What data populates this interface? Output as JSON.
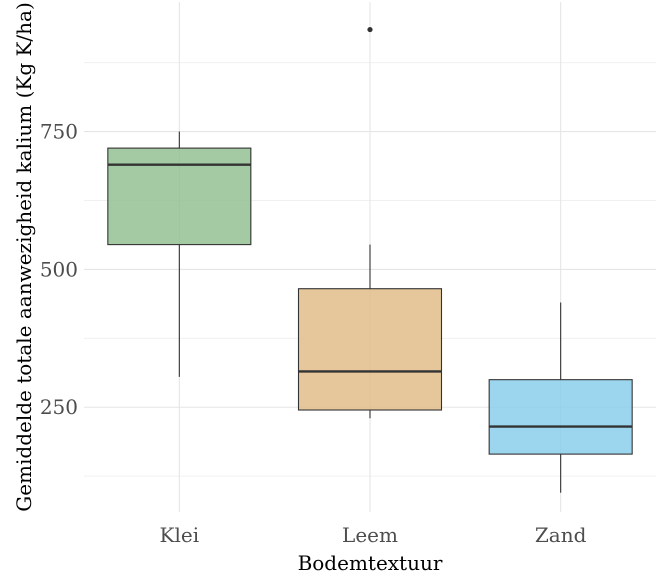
{
  "chart_data": {
    "type": "boxplot",
    "xlabel": "Bodemtextuur",
    "ylabel": "Gemiddelde totale aanwezigheid kalium (Kg K/ha)",
    "ylim": [
      60,
      985
    ],
    "y_ticks": [
      250,
      500,
      750
    ],
    "grid": true,
    "legend": "none",
    "categories": [
      "Klei",
      "Leem",
      "Zand"
    ],
    "boxes": [
      {
        "category": "Klei",
        "whisker_low": 305,
        "q1": 545,
        "median": 690,
        "q3": 720,
        "whisker_high": 750,
        "outliers": [],
        "color": "#93c193"
      },
      {
        "category": "Leem",
        "whisker_low": 230,
        "q1": 245,
        "median": 315,
        "q3": 465,
        "whisker_high": 545,
        "outliers": [
          935
        ],
        "color": "#e1bd8a"
      },
      {
        "category": "Zand",
        "whisker_low": 95,
        "q1": 165,
        "median": 215,
        "q3": 300,
        "whisker_high": 440,
        "outliers": [],
        "color": "#8bcfeb"
      }
    ]
  }
}
